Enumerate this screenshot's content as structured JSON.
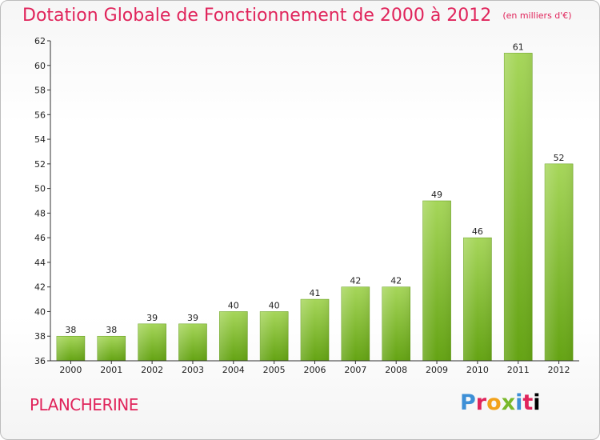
{
  "header": {
    "title": "Dotation Globale de Fonctionnement de 2000 à 2012",
    "unit": "(en milliers d'€)"
  },
  "footer": {
    "commune": "PLANCHERINE",
    "logo_letters": [
      "P",
      "r",
      "o",
      "x",
      "i",
      "t",
      "i"
    ],
    "logo_text": "Proxiti"
  },
  "colors": {
    "title": "#e0245b",
    "bar_light": "#a6d65a",
    "bar_dark": "#64a313",
    "axis": "#333333",
    "grid_label": "#222222"
  },
  "chart_data": {
    "type": "bar",
    "title": "Dotation Globale de Fonctionnement de 2000 à 2012",
    "subtitle": "(en milliers d'€)",
    "categories": [
      "2000",
      "2001",
      "2002",
      "2003",
      "2004",
      "2005",
      "2006",
      "2007",
      "2008",
      "2009",
      "2010",
      "2011",
      "2012"
    ],
    "values": [
      38,
      38,
      39,
      39,
      40,
      40,
      41,
      42,
      42,
      49,
      46,
      61,
      52
    ],
    "ylim": [
      36,
      62
    ],
    "yticks": [
      36,
      38,
      40,
      42,
      44,
      46,
      48,
      50,
      52,
      54,
      56,
      58,
      60,
      62
    ],
    "xlabel": "",
    "ylabel": "",
    "grid": false,
    "legend": "none",
    "data_labels": true
  }
}
